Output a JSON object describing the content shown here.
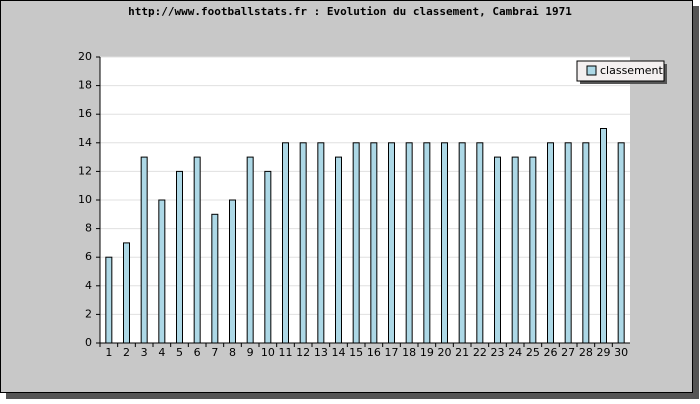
{
  "chart_data": {
    "type": "bar",
    "title": "http://www.footballstats.fr : Evolution du classement, Cambrai 1971",
    "categories": [
      "1",
      "2",
      "3",
      "4",
      "5",
      "6",
      "7",
      "8",
      "9",
      "10",
      "11",
      "12",
      "13",
      "14",
      "15",
      "16",
      "17",
      "18",
      "19",
      "20",
      "21",
      "22",
      "23",
      "24",
      "25",
      "26",
      "27",
      "28",
      "29",
      "30"
    ],
    "series": [
      {
        "name": "classement",
        "color": "#add8e6",
        "values": [
          6,
          7,
          13,
          10,
          12,
          13,
          9,
          10,
          13,
          12,
          14,
          14,
          14,
          13,
          14,
          14,
          14,
          14,
          14,
          14,
          14,
          14,
          13,
          13,
          13,
          14,
          14,
          14,
          15,
          14
        ]
      }
    ],
    "ylim": [
      0,
      20
    ],
    "yticks": [
      0,
      2,
      4,
      6,
      8,
      10,
      12,
      14,
      16,
      18,
      20
    ],
    "grid": true,
    "legend": "upper right"
  }
}
